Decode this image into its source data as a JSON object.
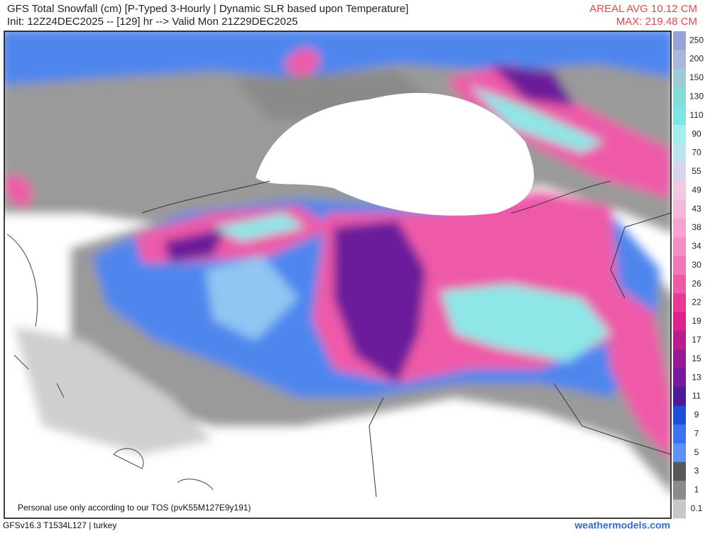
{
  "header": {
    "title": "GFS Total Snowfall (cm) [P-Typed 3-Hourly | Dynamic SLR based upon Temperature]",
    "subtitle": "Init: 12Z24DEC2025 -- [129] hr --> Valid Mon 21Z29DEC2025",
    "areal_avg": "AREAL AVG 10.12 CM",
    "max": "MAX: 219.48 CM"
  },
  "colorbar": {
    "labels": [
      250,
      200,
      150,
      130,
      110,
      90,
      70,
      55,
      49,
      43,
      38,
      34,
      30,
      26,
      22,
      19,
      17,
      15,
      13,
      11,
      9,
      7,
      5,
      3,
      1,
      0.1
    ],
    "colors": [
      "#9aa3d6",
      "#a9b7de",
      "#9fcad8",
      "#86dcd8",
      "#7fe6e6",
      "#a5eeee",
      "#bde3f0",
      "#d9d4ee",
      "#f2c9e0",
      "#f5b8d8",
      "#f6a4cf",
      "#f58fc3",
      "#f277b7",
      "#ee5aa8",
      "#ea3896",
      "#dc218c",
      "#bb1b8e",
      "#981a93",
      "#751a9a",
      "#4f1a9a",
      "#1f4fd8",
      "#3a72ef",
      "#5a93f4",
      "#585858",
      "#8a8a8a",
      "#c8c8c8"
    ]
  },
  "footer": {
    "tos": "Personal use only according to our TOS (pvK55M127E9y191)",
    "model": "GFSv16.3 T1534L127 | turkey",
    "site": "weathermodels.com"
  }
}
